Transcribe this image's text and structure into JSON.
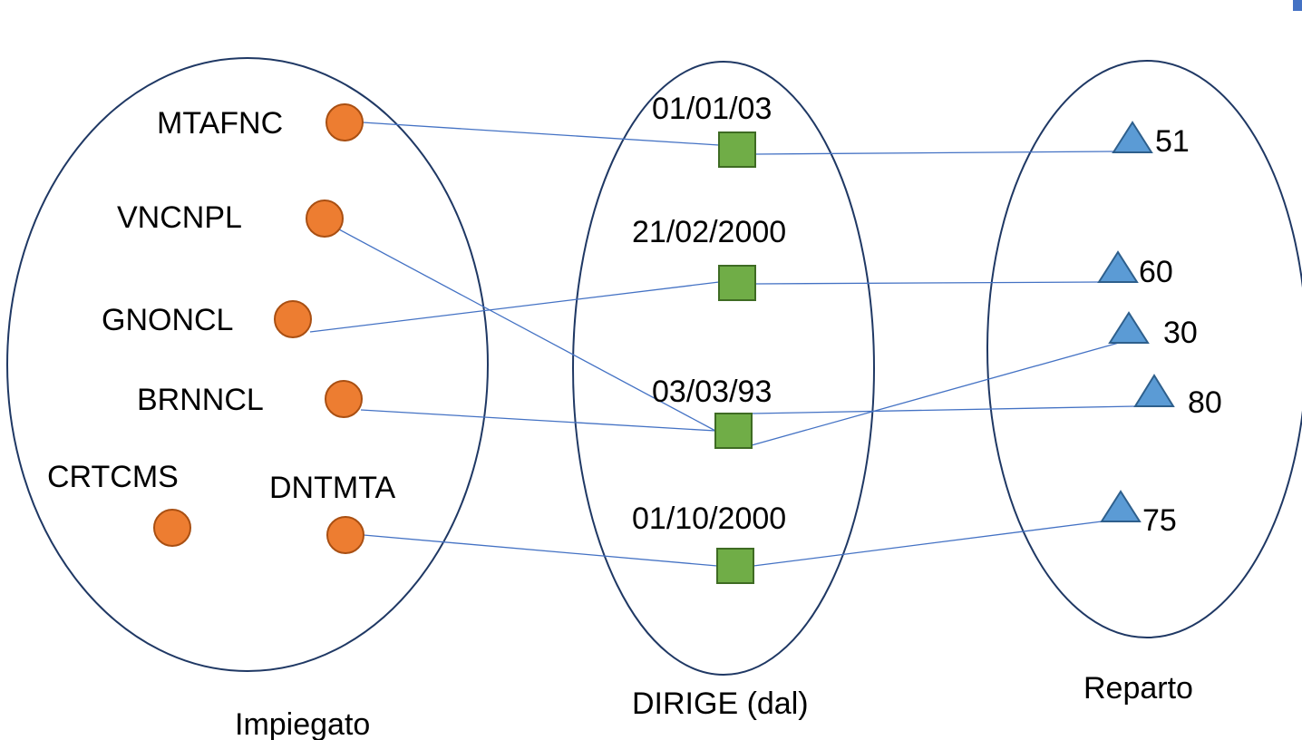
{
  "sets": {
    "impiegato": "Impiegato",
    "dirige": "DIRIGE (dal)",
    "reparto": "Reparto"
  },
  "employees": [
    {
      "id": "e0",
      "code": "MTAFNC"
    },
    {
      "id": "e1",
      "code": "VNCNPL"
    },
    {
      "id": "e2",
      "code": "GNONCL"
    },
    {
      "id": "e3",
      "code": "BRNNCL"
    },
    {
      "id": "e4",
      "code": "CRTCMS"
    },
    {
      "id": "e5",
      "code": "DNTMTA"
    }
  ],
  "relationships": [
    {
      "id": "r0",
      "date": "01/01/03"
    },
    {
      "id": "r1",
      "date": "21/02/2000"
    },
    {
      "id": "r2",
      "date": "03/03/93"
    },
    {
      "id": "r3",
      "date": "01/10/2000"
    }
  ],
  "departments": [
    {
      "id": "d0",
      "num": "51"
    },
    {
      "id": "d1",
      "num": "60"
    },
    {
      "id": "d2",
      "num": "30"
    },
    {
      "id": "d3",
      "num": "80"
    },
    {
      "id": "d4",
      "num": "75"
    }
  ],
  "links": [
    {
      "from": "e0",
      "rel": "r0",
      "to": "d0"
    },
    {
      "from": "e2",
      "rel": "r1",
      "to": "d1"
    },
    {
      "from": "e1",
      "rel": "r2",
      "to": "d3"
    },
    {
      "from": "e3",
      "rel": "r2",
      "to": "d2"
    },
    {
      "from": "e5",
      "rel": "r3",
      "to": "d4"
    }
  ],
  "colors": {
    "employee": "#ED7D31",
    "relationship": "#70AD47",
    "department": "#5B9BD5",
    "outline": "#1F3864",
    "link": "#4472C4"
  }
}
